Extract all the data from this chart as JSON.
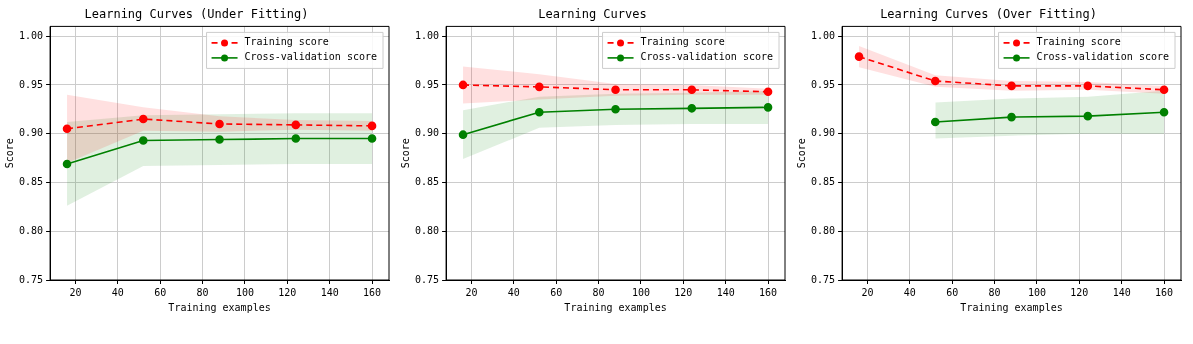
{
  "chart_data": [
    {
      "type": "line",
      "title": "Learning Curves (Under Fitting)",
      "xlabel": "Training examples",
      "ylabel": "Score",
      "x": [
        16,
        52,
        88,
        124,
        160
      ],
      "xlim": [
        8,
        168
      ],
      "xticks": [
        20,
        40,
        60,
        80,
        100,
        120,
        140,
        160
      ],
      "ylim": [
        0.75,
        1.01
      ],
      "yticks": [
        {
          "value": 0.75,
          "label": "0.75"
        },
        {
          "value": 0.8,
          "label": "0.80"
        },
        {
          "value": 0.85,
          "label": "0.85"
        },
        {
          "value": 0.9,
          "label": "0.90"
        },
        {
          "value": 0.95,
          "label": "0.95"
        },
        {
          "value": 1.0,
          "label": "1.00"
        }
      ],
      "grid": true,
      "legend": "top right",
      "marker": "circle",
      "series": [
        {
          "name": "Training score",
          "color": "#ff0000",
          "line_style": "dashed",
          "values": [
            0.905,
            0.915,
            0.91,
            0.909,
            0.908
          ],
          "lower": [
            0.87,
            0.903,
            0.902,
            0.904,
            0.903
          ],
          "upper": [
            0.94,
            0.927,
            0.918,
            0.914,
            0.913
          ]
        },
        {
          "name": "Cross-validation score",
          "color": "#008000",
          "line_style": "solid",
          "values": [
            0.869,
            0.893,
            0.894,
            0.895,
            0.895
          ],
          "lower": [
            0.826,
            0.867,
            0.868,
            0.869,
            0.869
          ],
          "upper": [
            0.912,
            0.919,
            0.92,
            0.921,
            0.921
          ]
        }
      ]
    },
    {
      "type": "line",
      "title": "Learning Curves",
      "xlabel": "Training examples",
      "ylabel": "Score",
      "x": [
        16,
        52,
        88,
        124,
        160
      ],
      "xlim": [
        8,
        168
      ],
      "xticks": [
        20,
        40,
        60,
        80,
        100,
        120,
        140,
        160
      ],
      "ylim": [
        0.75,
        1.01
      ],
      "yticks": [
        {
          "value": 0.75,
          "label": "0.75"
        },
        {
          "value": 0.8,
          "label": "0.80"
        },
        {
          "value": 0.85,
          "label": "0.85"
        },
        {
          "value": 0.9,
          "label": "0.90"
        },
        {
          "value": 0.95,
          "label": "0.95"
        },
        {
          "value": 1.0,
          "label": "1.00"
        }
      ],
      "grid": true,
      "legend": "top right",
      "marker": "circle",
      "series": [
        {
          "name": "Training score",
          "color": "#ff0000",
          "line_style": "dashed",
          "values": [
            0.95,
            0.948,
            0.945,
            0.945,
            0.943
          ],
          "lower": [
            0.931,
            0.935,
            0.939,
            0.94,
            0.94
          ],
          "upper": [
            0.969,
            0.961,
            0.951,
            0.95,
            0.946
          ]
        },
        {
          "name": "Cross-validation score",
          "color": "#008000",
          "line_style": "solid",
          "values": [
            0.899,
            0.922,
            0.925,
            0.926,
            0.927
          ],
          "lower": [
            0.874,
            0.906,
            0.909,
            0.91,
            0.91
          ],
          "upper": [
            0.924,
            0.938,
            0.941,
            0.942,
            0.944
          ]
        }
      ]
    },
    {
      "type": "line",
      "title": "Learning Curves (Over Fitting)",
      "xlabel": "Training examples",
      "ylabel": "Score",
      "x": [
        16,
        52,
        88,
        124,
        160
      ],
      "xlim": [
        8,
        168
      ],
      "xticks": [
        20,
        40,
        60,
        80,
        100,
        120,
        140,
        160
      ],
      "ylim": [
        0.75,
        1.01
      ],
      "yticks": [
        {
          "value": 0.75,
          "label": "0.75"
        },
        {
          "value": 0.8,
          "label": "0.80"
        },
        {
          "value": 0.85,
          "label": "0.85"
        },
        {
          "value": 0.9,
          "label": "0.90"
        },
        {
          "value": 0.95,
          "label": "0.95"
        },
        {
          "value": 1.0,
          "label": "1.00"
        }
      ],
      "grid": true,
      "legend": "top right",
      "marker": "circle",
      "series": [
        {
          "name": "Training score",
          "color": "#ff0000",
          "line_style": "dashed",
          "values": [
            0.979,
            0.954,
            0.949,
            0.949,
            0.945
          ],
          "lower": [
            0.968,
            0.948,
            0.944,
            0.945,
            0.941
          ],
          "upper": [
            0.99,
            0.96,
            0.954,
            0.953,
            0.949
          ]
        },
        {
          "name": "Cross-validation score",
          "color": "#008000",
          "line_style": "solid",
          "values": [
            null,
            0.912,
            0.917,
            0.918,
            0.922
          ],
          "lower": [
            null,
            0.895,
            0.898,
            0.9,
            0.9
          ],
          "upper": [
            null,
            0.932,
            0.936,
            0.938,
            0.944
          ]
        }
      ]
    }
  ]
}
